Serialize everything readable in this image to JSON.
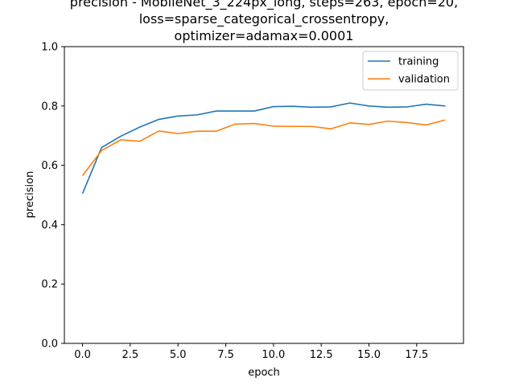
{
  "chart_data": {
    "type": "line",
    "title": [
      "precision - MobileNet_3_224px_long, steps=263, epoch=20,",
      "loss=sparse_categorical_crossentropy,",
      "optimizer=adamax=0.0001"
    ],
    "xlabel": "epoch",
    "ylabel": "precision",
    "xlim": [
      -0.95,
      19.95
    ],
    "ylim": [
      0.0,
      1.0
    ],
    "xticks": [
      0.0,
      2.5,
      5.0,
      7.5,
      10.0,
      12.5,
      15.0,
      17.5
    ],
    "xtick_labels": [
      "0.0",
      "2.5",
      "5.0",
      "7.5",
      "10.0",
      "12.5",
      "15.0",
      "17.5"
    ],
    "yticks": [
      0.0,
      0.2,
      0.4,
      0.6,
      0.8,
      1.0
    ],
    "ytick_labels": [
      "0.0",
      "0.2",
      "0.4",
      "0.6",
      "0.8",
      "1.0"
    ],
    "grid": false,
    "legend_position": "upper right",
    "x": [
      0,
      1,
      2,
      3,
      4,
      5,
      6,
      7,
      8,
      9,
      10,
      11,
      12,
      13,
      14,
      15,
      16,
      17,
      18,
      19
    ],
    "series": [
      {
        "name": "training",
        "color": "#1f77b4",
        "values": [
          0.505,
          0.66,
          0.698,
          0.729,
          0.755,
          0.766,
          0.77,
          0.783,
          0.783,
          0.783,
          0.798,
          0.799,
          0.796,
          0.797,
          0.81,
          0.8,
          0.796,
          0.797,
          0.806,
          0.8
        ]
      },
      {
        "name": "validation",
        "color": "#ff7f0e",
        "values": [
          0.565,
          0.65,
          0.686,
          0.681,
          0.716,
          0.707,
          0.715,
          0.715,
          0.739,
          0.741,
          0.732,
          0.731,
          0.731,
          0.723,
          0.743,
          0.738,
          0.749,
          0.744,
          0.736,
          0.753
        ]
      }
    ]
  }
}
